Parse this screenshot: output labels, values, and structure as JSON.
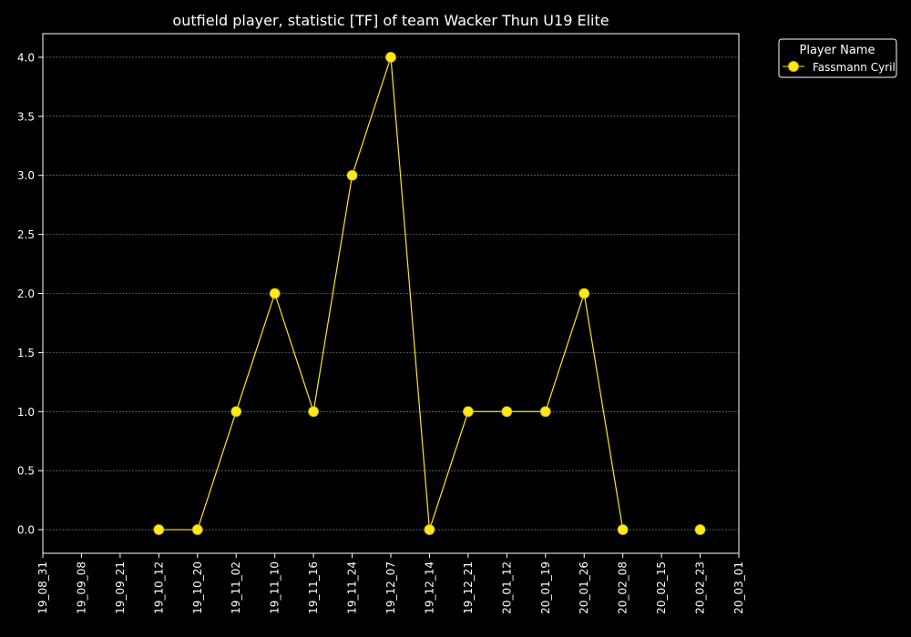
{
  "chart_data": {
    "type": "line",
    "title": "outfield player, statistic [TF] of team Wacker Thun U19 Elite",
    "xlabel": "",
    "ylabel": "",
    "x_ticks": [
      "19_08_31",
      "19_09_08",
      "19_09_21",
      "19_10_12",
      "19_10_20",
      "19_11_02",
      "19_11_10",
      "19_11_16",
      "19_11_24",
      "19_12_07",
      "19_12_14",
      "19_12_21",
      "20_01_12",
      "20_01_19",
      "20_01_26",
      "20_02_08",
      "20_02_15",
      "20_02_23",
      "20_03_01"
    ],
    "y_ticks": [
      "0.0",
      "0.5",
      "1.0",
      "1.5",
      "2.0",
      "2.5",
      "3.0",
      "3.5",
      "4.0"
    ],
    "ylim": [
      -0.2,
      4.2
    ],
    "grid": true,
    "legend": {
      "title": "Player Name",
      "placement": "outside-top-right"
    },
    "series": [
      {
        "name": "Fassmann Cyril",
        "color": "#ffe81a",
        "points": [
          {
            "x": "19_10_12",
            "y": 0
          },
          {
            "x": "19_10_20",
            "y": 0
          },
          {
            "x": "19_11_02",
            "y": 1
          },
          {
            "x": "19_11_10",
            "y": 2
          },
          {
            "x": "19_11_16",
            "y": 1
          },
          {
            "x": "19_11_24",
            "y": 3
          },
          {
            "x": "19_12_07",
            "y": 4
          },
          {
            "x": "19_12_14",
            "y": 0
          },
          {
            "x": "19_12_21",
            "y": 1
          },
          {
            "x": "20_01_12",
            "y": 1
          },
          {
            "x": "20_01_19",
            "y": 1
          },
          {
            "x": "20_01_26",
            "y": 2
          },
          {
            "x": "20_02_08",
            "y": 0
          }
        ],
        "isolated_points": [
          {
            "x": "20_02_23",
            "y": 0
          }
        ]
      }
    ]
  }
}
